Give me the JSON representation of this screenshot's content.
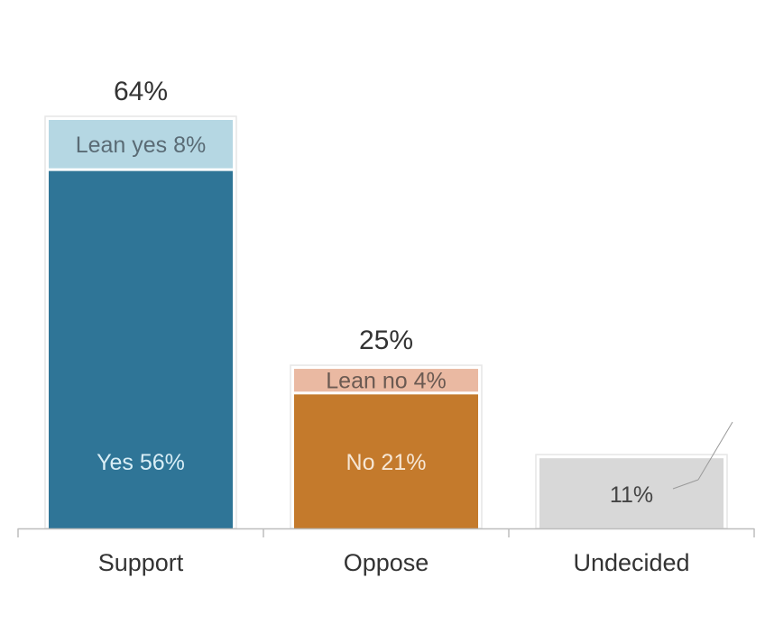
{
  "chart_data": {
    "type": "bar",
    "stacked": true,
    "categories": [
      "Support",
      "Oppose",
      "Undecided"
    ],
    "ylim": [
      0,
      70
    ],
    "grid": false,
    "legend": "none",
    "bars": [
      {
        "category": "Support",
        "total_label": "64%",
        "segments": [
          {
            "value": 56,
            "label": "Yes 56%",
            "color": "#2f7597",
            "text_color": "#d9eef6"
          },
          {
            "value": 8,
            "label": "Lean yes 8%",
            "color": "#b5d7e3",
            "text_color": "#5a6b75"
          }
        ]
      },
      {
        "category": "Oppose",
        "total_label": "25%",
        "segments": [
          {
            "value": 21,
            "label": "No 21%",
            "color": "#c47a2c",
            "text_color": "#f6e6d4"
          },
          {
            "value": 4,
            "label": "Lean no 4%",
            "color": "#eab9a2",
            "text_color": "#6b5a52"
          }
        ]
      },
      {
        "category": "Undecided",
        "total_label": "",
        "segments": [
          {
            "value": 11,
            "label": "11%",
            "color": "#d8d8d8",
            "text_color": "#444444"
          }
        ]
      }
    ],
    "axis_color": "#bdbdbd"
  }
}
